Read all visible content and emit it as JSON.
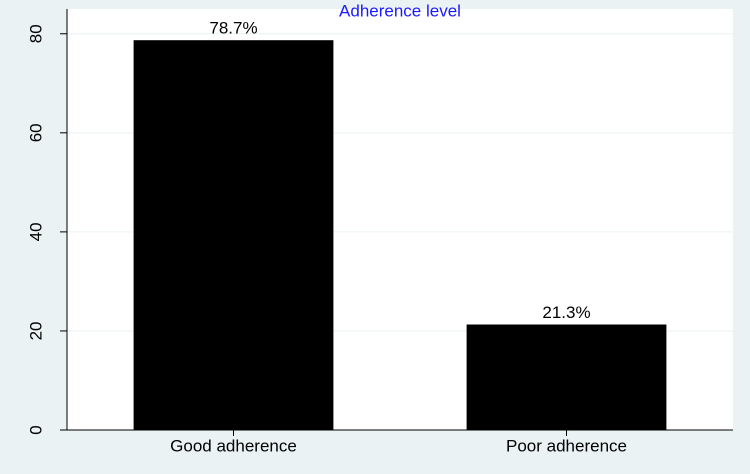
{
  "chart_data": {
    "type": "bar",
    "title": "Adherence level",
    "categories": [
      "Good adherence",
      "Poor adherence"
    ],
    "values": [
      78.7,
      21.3
    ],
    "value_labels": [
      "78.7%",
      "21.3%"
    ],
    "color": "#000000",
    "title_color": "#1a1aff",
    "ylim": [
      0,
      85
    ],
    "yticks": [
      0,
      20,
      40,
      60,
      80
    ],
    "grid": true
  }
}
